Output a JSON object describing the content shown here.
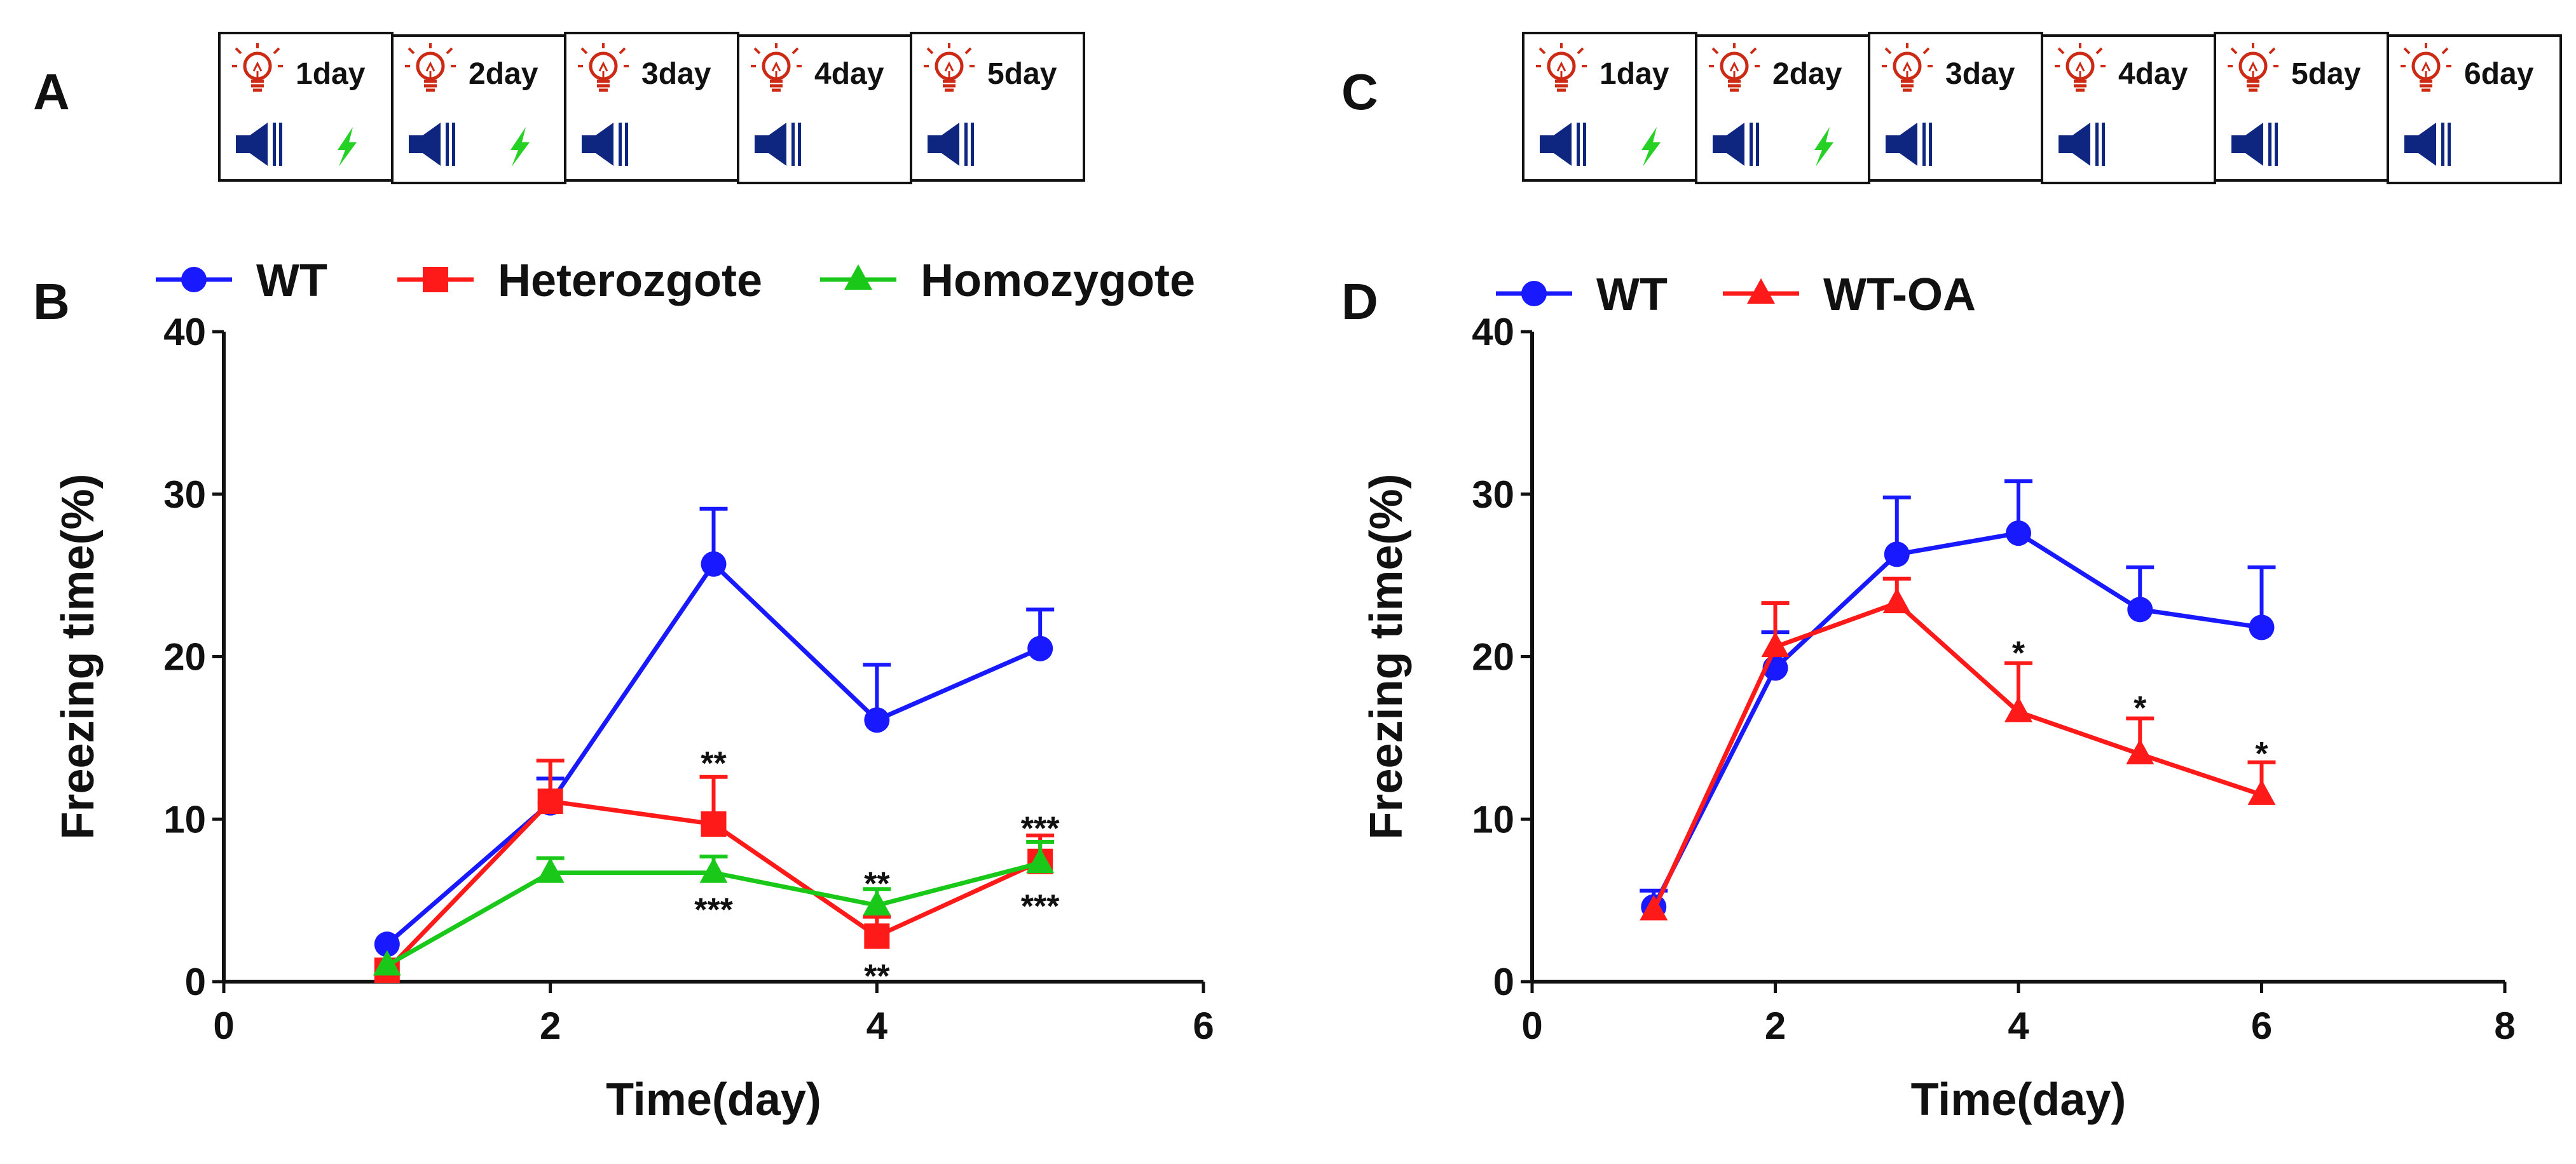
{
  "colors": {
    "wt": "#1919ff",
    "heterozygote": "#ff1a1a",
    "homozygote": "#1ac81a",
    "bulb": "#cc2a14",
    "speaker": "#0f2680",
    "lightning": "#26d126",
    "axis": "#111111"
  },
  "icons": {
    "light": "bulb-icon",
    "tone": "speaker-icon",
    "shock": "lightning-icon"
  },
  "panels": {
    "A": {
      "label": "A"
    },
    "B": {
      "label": "B"
    },
    "C": {
      "label": "C"
    },
    "D": {
      "label": "D"
    }
  },
  "protocol_A": {
    "days": [
      {
        "label": "1day",
        "shock": true
      },
      {
        "label": "2day",
        "shock": true
      },
      {
        "label": "3day",
        "shock": false
      },
      {
        "label": "4day",
        "shock": false
      },
      {
        "label": "5day",
        "shock": false
      }
    ]
  },
  "protocol_C": {
    "days": [
      {
        "label": "1day",
        "shock": true
      },
      {
        "label": "2day",
        "shock": true
      },
      {
        "label": "3day",
        "shock": false
      },
      {
        "label": "4day",
        "shock": false
      },
      {
        "label": "5day",
        "shock": false
      },
      {
        "label": "6day",
        "shock": false
      }
    ]
  },
  "chart_data": [
    {
      "id": "B",
      "type": "line",
      "title": "",
      "xlabel": "Time(day)",
      "ylabel": "Freezing time(%)",
      "xlim": [
        0,
        6
      ],
      "ylim": [
        0,
        40
      ],
      "xticks": [
        0,
        2,
        4,
        6
      ],
      "yticks": [
        0,
        10,
        20,
        30,
        40
      ],
      "legend_position": "top",
      "series": [
        {
          "name": "WT",
          "color": "#1919ff",
          "marker": "circle",
          "x": [
            1,
            2,
            3,
            4,
            5
          ],
          "y": [
            2.3,
            11.0,
            25.7,
            16.1,
            20.5
          ],
          "err": [
            0,
            1.5,
            3.4,
            3.4,
            2.4
          ]
        },
        {
          "name": "Heterozgote",
          "color": "#ff1a1a",
          "marker": "square",
          "x": [
            1,
            2,
            3,
            4,
            5
          ],
          "y": [
            0.7,
            11.1,
            9.7,
            2.8,
            7.4
          ],
          "err": [
            0,
            2.5,
            2.9,
            1.2,
            1.6
          ]
        },
        {
          "name": "Homozygote",
          "color": "#1ac81a",
          "marker": "triangle",
          "x": [
            1,
            2,
            3,
            4,
            5
          ],
          "y": [
            1.0,
            6.7,
            6.7,
            4.7,
            7.3
          ],
          "err": [
            0,
            0.9,
            1.0,
            1.0,
            1.3
          ]
        }
      ],
      "annotations": [
        {
          "text": "**",
          "x": 3,
          "y": 13.6
        },
        {
          "text": "***",
          "x": 3,
          "y": 4.6
        },
        {
          "text": "**",
          "x": 4,
          "y": 6.2
        },
        {
          "text": "**",
          "x": 4,
          "y": 0.5
        },
        {
          "text": "***",
          "x": 5,
          "y": 9.6
        },
        {
          "text": "***",
          "x": 5,
          "y": 4.8
        }
      ]
    },
    {
      "id": "D",
      "type": "line",
      "title": "",
      "xlabel": "Time(day)",
      "ylabel": "Freezing time(%)",
      "xlim": [
        0,
        8
      ],
      "ylim": [
        0,
        40
      ],
      "xticks": [
        0,
        2,
        4,
        6,
        8
      ],
      "yticks": [
        0,
        10,
        20,
        30,
        40
      ],
      "legend_position": "top",
      "series": [
        {
          "name": "WT",
          "color": "#1919ff",
          "marker": "circle",
          "x": [
            1,
            2,
            3,
            4,
            5,
            6
          ],
          "y": [
            4.6,
            19.3,
            26.3,
            27.6,
            22.9,
            21.8
          ],
          "err": [
            1.0,
            2.2,
            3.5,
            3.2,
            2.6,
            3.7
          ]
        },
        {
          "name": "WT-OA",
          "color": "#ff1a1a",
          "marker": "triangle",
          "x": [
            1,
            2,
            3,
            4,
            5,
            6
          ],
          "y": [
            4.4,
            20.6,
            23.3,
            16.6,
            14.0,
            11.5
          ],
          "err": [
            0,
            2.7,
            1.5,
            3.0,
            2.2,
            2.0
          ]
        }
      ],
      "annotations": [
        {
          "text": "*",
          "x": 4,
          "y": 20.4
        },
        {
          "text": "*",
          "x": 5,
          "y": 17.0
        },
        {
          "text": "*",
          "x": 6,
          "y": 14.2
        }
      ]
    }
  ]
}
